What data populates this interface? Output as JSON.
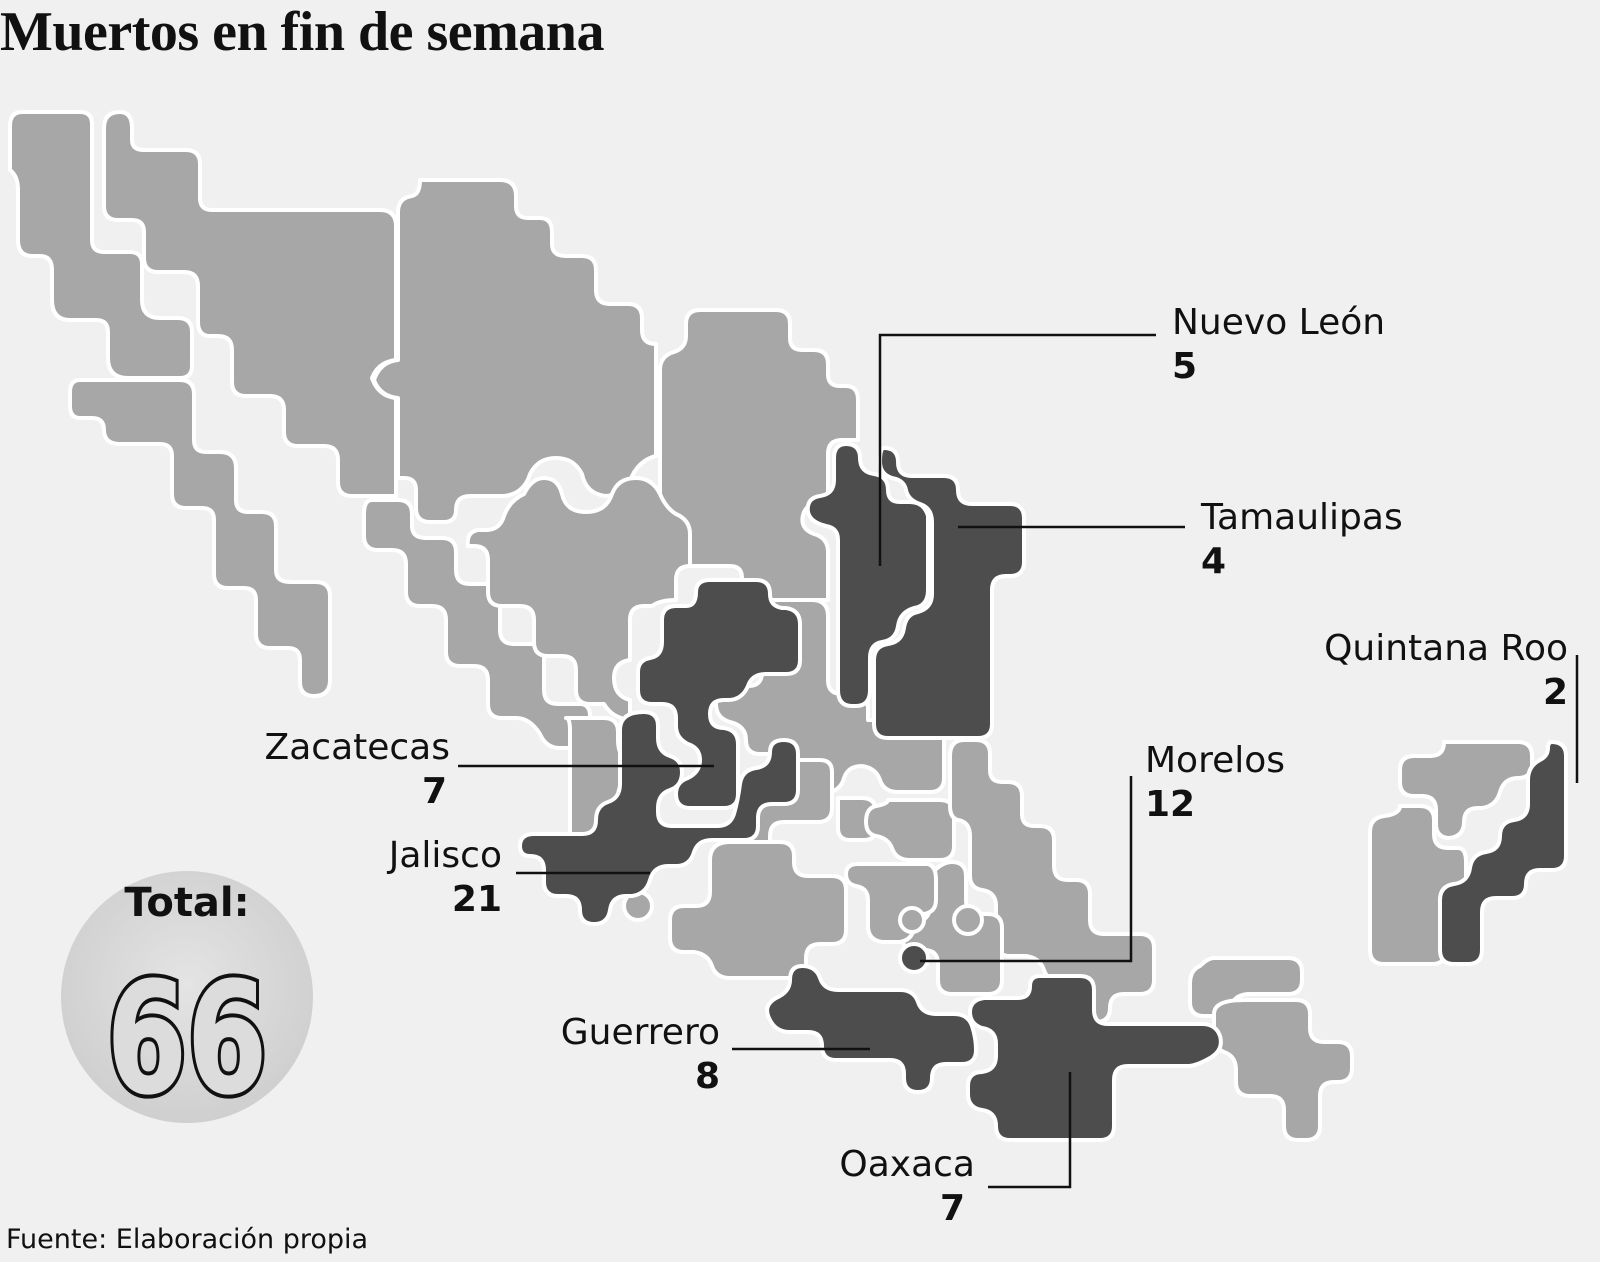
{
  "title": "Muertos en fin de semana",
  "source": "Fuente: Elaboración propia",
  "total": {
    "label": "Total:",
    "value": "66"
  },
  "colors": {
    "state_default": "#a7a7a7",
    "state_highlight": "#4d4d4d",
    "border": "#ffffff",
    "background": "#f0f0f0",
    "total_circle": "#dcdcdc"
  },
  "states": [
    {
      "name": "Nuevo León",
      "value": "5"
    },
    {
      "name": "Tamaulipas",
      "value": "4"
    },
    {
      "name": "Quintana Roo",
      "value": "2"
    },
    {
      "name": "Zacatecas",
      "value": "7"
    },
    {
      "name": "Morelos",
      "value": "12"
    },
    {
      "name": "Jalisco",
      "value": "21"
    },
    {
      "name": "Guerrero",
      "value": "8"
    },
    {
      "name": "Oaxaca",
      "value": "7"
    }
  ]
}
